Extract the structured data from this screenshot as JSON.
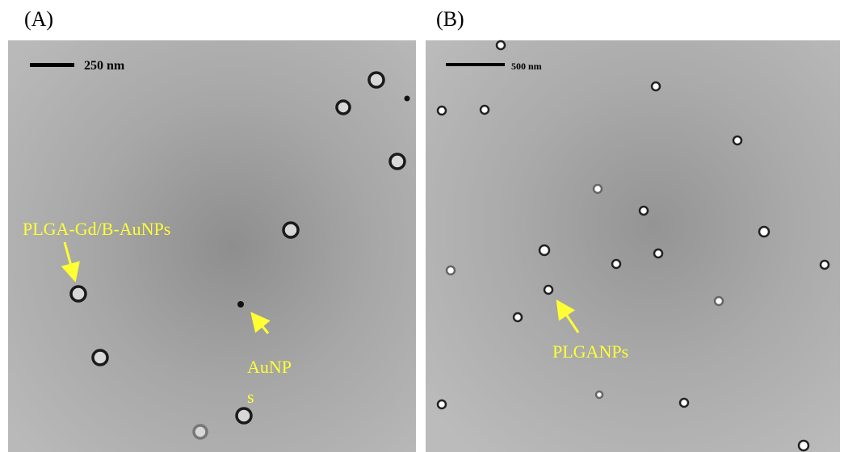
{
  "panels": [
    {
      "label": "(A)",
      "scale_bar": "250 nm",
      "annotations": [
        "PLGA-Gd/B-AuNPs",
        "AuNP",
        "s"
      ]
    },
    {
      "label": "(B)",
      "scale_bar": "500 nm",
      "annotations": [
        "PLGANPs"
      ]
    }
  ]
}
